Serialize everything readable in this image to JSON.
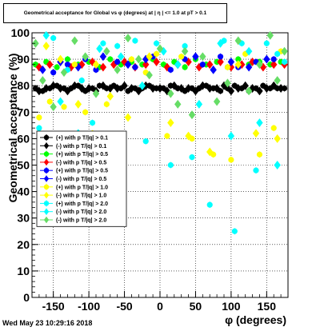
{
  "title": "Geometrical acceptance for Global vs φ (degrees) at | η | <= 1.0 at pT > 0.1",
  "date": "Wed May 23 10:29:16 2018",
  "chart_data": {
    "type": "scatter",
    "xlabel": "φ (degrees)",
    "ylabel": "Geometrical acceptance (%)",
    "xlim": [
      -180,
      180
    ],
    "ylim": [
      0,
      100
    ],
    "xticks": [
      -150,
      -100,
      -50,
      0,
      50,
      100,
      150
    ],
    "yticks": [
      0,
      10,
      20,
      30,
      40,
      50,
      60,
      70,
      80,
      90,
      100
    ],
    "grid": true,
    "legend_position": "left-middle",
    "series": [
      {
        "name": "(+) with p T/|q| > 0.1",
        "color": "#000000",
        "marker": "circle",
        "points": [
          [
            -175,
            79
          ],
          [
            -165,
            78
          ],
          [
            -155,
            79
          ],
          [
            -145,
            80
          ],
          [
            -135,
            79
          ],
          [
            -125,
            79
          ],
          [
            -115,
            80
          ],
          [
            -105,
            78
          ],
          [
            -95,
            79
          ],
          [
            -85,
            80
          ],
          [
            -75,
            79
          ],
          [
            -65,
            80
          ],
          [
            -55,
            79
          ],
          [
            -45,
            78
          ],
          [
            -35,
            79
          ],
          [
            -25,
            79
          ],
          [
            -15,
            80
          ],
          [
            -5,
            79
          ],
          [
            5,
            79
          ],
          [
            15,
            80
          ],
          [
            25,
            79
          ],
          [
            35,
            78
          ],
          [
            45,
            79
          ],
          [
            55,
            79
          ],
          [
            65,
            80
          ],
          [
            75,
            79
          ],
          [
            85,
            78
          ],
          [
            95,
            79
          ],
          [
            105,
            80
          ],
          [
            115,
            79
          ],
          [
            125,
            78
          ],
          [
            135,
            79
          ],
          [
            145,
            80
          ],
          [
            155,
            79
          ],
          [
            165,
            79
          ],
          [
            175,
            79
          ]
        ]
      },
      {
        "name": "(-) with p T/|q| > 0.1",
        "color": "#000000",
        "marker": "diamond",
        "points": [
          [
            -170,
            78
          ],
          [
            -160,
            79
          ],
          [
            -150,
            80
          ],
          [
            -140,
            79
          ],
          [
            -130,
            78
          ],
          [
            -120,
            80
          ],
          [
            -110,
            79
          ],
          [
            -100,
            79
          ],
          [
            -90,
            78
          ],
          [
            -80,
            80
          ],
          [
            -70,
            79
          ],
          [
            -60,
            79
          ],
          [
            -50,
            80
          ],
          [
            -40,
            79
          ],
          [
            -30,
            78
          ],
          [
            -20,
            80
          ],
          [
            -10,
            79
          ],
          [
            0,
            79
          ],
          [
            10,
            78
          ],
          [
            20,
            80
          ],
          [
            30,
            79
          ],
          [
            40,
            79
          ],
          [
            50,
            78
          ],
          [
            60,
            80
          ],
          [
            70,
            79
          ],
          [
            80,
            79
          ],
          [
            90,
            80
          ],
          [
            100,
            78
          ],
          [
            110,
            79
          ],
          [
            120,
            80
          ],
          [
            130,
            79
          ],
          [
            140,
            78
          ],
          [
            150,
            79
          ],
          [
            160,
            80
          ],
          [
            170,
            79
          ]
        ]
      },
      {
        "name": "(+) with p T/|q| > 0.5",
        "color": "#00ff00",
        "marker": "circle",
        "points": [
          [
            -175,
            88
          ],
          [
            -160,
            89
          ],
          [
            -145,
            87
          ],
          [
            -130,
            90
          ],
          [
            -115,
            88
          ],
          [
            -100,
            89
          ],
          [
            -85,
            87
          ],
          [
            -70,
            90
          ],
          [
            -55,
            88
          ],
          [
            -40,
            89
          ],
          [
            -25,
            88
          ],
          [
            -10,
            90
          ],
          [
            5,
            88
          ],
          [
            20,
            89
          ],
          [
            35,
            87
          ],
          [
            50,
            90
          ],
          [
            65,
            88
          ],
          [
            80,
            89
          ],
          [
            95,
            87
          ],
          [
            110,
            90
          ],
          [
            125,
            88
          ],
          [
            140,
            89
          ],
          [
            155,
            88
          ],
          [
            170,
            89
          ]
        ]
      },
      {
        "name": "(-) with p T/|q| > 0.5",
        "color": "#ff0000",
        "marker": "diamond",
        "points": [
          [
            -170,
            87
          ],
          [
            -155,
            88
          ],
          [
            -140,
            89
          ],
          [
            -125,
            87
          ],
          [
            -110,
            88
          ],
          [
            -95,
            89
          ],
          [
            -80,
            87
          ],
          [
            -65,
            88
          ],
          [
            -50,
            89
          ],
          [
            -35,
            87
          ],
          [
            -20,
            88
          ],
          [
            -5,
            89
          ],
          [
            10,
            87
          ],
          [
            25,
            88
          ],
          [
            40,
            89
          ],
          [
            55,
            87
          ],
          [
            70,
            88
          ],
          [
            85,
            89
          ],
          [
            100,
            87
          ],
          [
            115,
            88
          ],
          [
            130,
            89
          ],
          [
            145,
            87
          ],
          [
            160,
            88
          ],
          [
            175,
            88
          ]
        ]
      },
      {
        "name": "(+) with p T/|q| > 0.5",
        "color": "#0000ff",
        "marker": "circle",
        "points": [
          [
            -150,
            85
          ],
          [
            -130,
            88
          ],
          [
            -105,
            90
          ],
          [
            -90,
            86
          ],
          [
            -60,
            89
          ],
          [
            -35,
            87
          ],
          [
            -10,
            91
          ],
          [
            15,
            86
          ],
          [
            35,
            90
          ],
          [
            60,
            88
          ],
          [
            85,
            91
          ],
          [
            110,
            87
          ],
          [
            135,
            89
          ],
          [
            160,
            90
          ]
        ]
      },
      {
        "name": "(-) with p T/|q| > 0.5",
        "color": "#0000ff",
        "marker": "diamond",
        "points": [
          [
            -165,
            86
          ],
          [
            -140,
            89
          ],
          [
            -115,
            87
          ],
          [
            -80,
            91
          ],
          [
            -45,
            88
          ],
          [
            -20,
            90
          ],
          [
            25,
            88
          ],
          [
            50,
            91
          ],
          [
            75,
            86
          ],
          [
            100,
            89
          ],
          [
            125,
            87
          ],
          [
            150,
            90
          ]
        ]
      },
      {
        "name": "(+) with p T/|q| > 1.0",
        "color": "#ffff00",
        "marker": "circle",
        "points": [
          [
            -170,
            68
          ],
          [
            -155,
            74
          ],
          [
            -135,
            72
          ],
          [
            -120,
            88
          ],
          [
            -105,
            70
          ],
          [
            -95,
            62
          ],
          [
            -75,
            73
          ],
          [
            -55,
            55
          ],
          [
            -40,
            90
          ],
          [
            -20,
            85
          ],
          [
            -5,
            92
          ],
          [
            10,
            61
          ],
          [
            30,
            91
          ],
          [
            45,
            60
          ],
          [
            75,
            54
          ],
          [
            95,
            87
          ],
          [
            100,
            52
          ],
          [
            120,
            92
          ],
          [
            140,
            54
          ],
          [
            160,
            64
          ],
          [
            170,
            93
          ]
        ]
      },
      {
        "name": "(-) with p T/|q| > 1.0",
        "color": "#ffff00",
        "marker": "diamond",
        "points": [
          [
            -160,
            95
          ],
          [
            -140,
            90
          ],
          [
            -115,
            73
          ],
          [
            -90,
            88
          ],
          [
            -70,
            76
          ],
          [
            -45,
            68
          ],
          [
            -15,
            91
          ],
          [
            15,
            66
          ],
          [
            40,
            61
          ],
          [
            70,
            55
          ],
          [
            110,
            88
          ],
          [
            135,
            62
          ],
          [
            165,
            60
          ]
        ]
      },
      {
        "name": "(+) with p T/|q| > 2.0",
        "color": "#00ffff",
        "marker": "circle",
        "points": [
          [
            -170,
            64
          ],
          [
            -150,
            98
          ],
          [
            -130,
            86
          ],
          [
            -110,
            82
          ],
          [
            -95,
            66
          ],
          [
            -80,
            96
          ],
          [
            -60,
            95
          ],
          [
            -35,
            97
          ],
          [
            -20,
            59
          ],
          [
            -5,
            96
          ],
          [
            15,
            50
          ],
          [
            35,
            95
          ],
          [
            45,
            53
          ],
          [
            70,
            35
          ],
          [
            90,
            97
          ],
          [
            105,
            25
          ],
          [
            115,
            96
          ],
          [
            135,
            48
          ],
          [
            150,
            96
          ],
          [
            165,
            92
          ],
          [
            175,
            89
          ]
        ]
      },
      {
        "name": "(-) with p T/|q| > 2.0",
        "color": "#00ffff",
        "marker": "diamond",
        "points": [
          [
            -160,
            99
          ],
          [
            -140,
            74
          ],
          [
            -115,
            62
          ],
          [
            -85,
            94
          ],
          [
            -55,
            91
          ],
          [
            -25,
            80
          ],
          [
            5,
            93
          ],
          [
            25,
            88
          ],
          [
            55,
            73
          ],
          [
            85,
            96
          ],
          [
            100,
            61
          ],
          [
            125,
            93
          ],
          [
            140,
            66
          ],
          [
            165,
            50
          ]
        ]
      },
      {
        "name": "(-) with p T/|q| > 2.0",
        "color": "#66dd66",
        "marker": "diamond",
        "points": [
          [
            -175,
            96
          ],
          [
            -165,
            82
          ],
          [
            -150,
            72
          ],
          [
            -135,
            85
          ],
          [
            -120,
            97
          ],
          [
            -105,
            91
          ],
          [
            -90,
            77
          ],
          [
            -75,
            93
          ],
          [
            -60,
            86
          ],
          [
            -45,
            98
          ],
          [
            -30,
            90
          ],
          [
            -15,
            84
          ],
          [
            0,
            94
          ],
          [
            15,
            77
          ],
          [
            25,
            73
          ],
          [
            35,
            93
          ],
          [
            45,
            69
          ],
          [
            60,
            91
          ],
          [
            80,
            74
          ],
          [
            95,
            81
          ],
          [
            110,
            97
          ],
          [
            125,
            78
          ],
          [
            140,
            88
          ],
          [
            155,
            99
          ],
          [
            165,
            82
          ],
          [
            175,
            93
          ]
        ]
      }
    ]
  }
}
